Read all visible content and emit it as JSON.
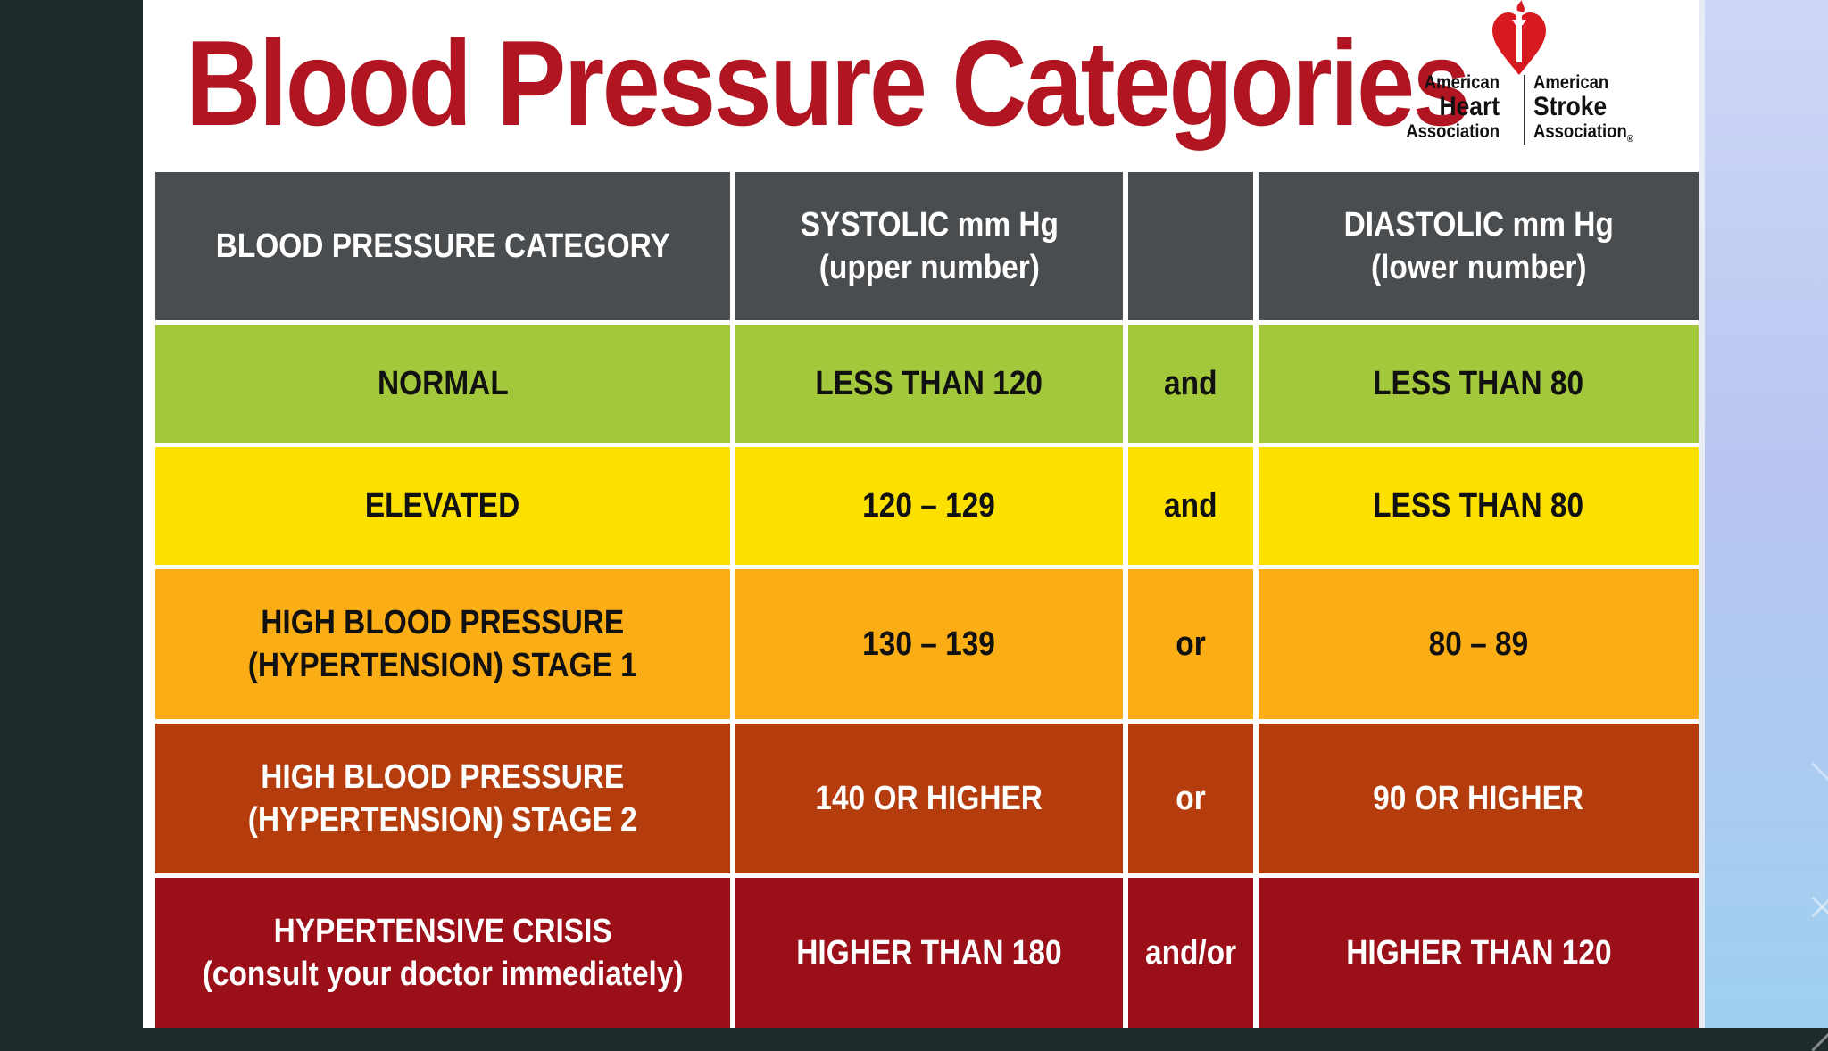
{
  "title": "Blood Pressure Categories",
  "logo": {
    "left_line1": "American",
    "left_line2": "Heart",
    "left_line3": "Association",
    "right_line1": "American",
    "right_line2": "Stroke",
    "right_line3": "Association",
    "registered": "®",
    "accent_color": "#d71920",
    "icon": "heart-torch-icon"
  },
  "colors": {
    "title": "#b01521",
    "header_bg": "#4a4d50",
    "normal_bg": "#a3c83c",
    "elevated_bg": "#fce100",
    "stage1_bg": "#fbad15",
    "stage2_bg": "#b53c0c",
    "crisis_bg": "#9a0f18"
  },
  "table": {
    "headers": {
      "category": "BLOOD PRESSURE CATEGORY",
      "systolic": "SYSTOLIC mm Hg\n(upper number)",
      "connector": "",
      "diastolic": "DIASTOLIC mm Hg\n(lower number)"
    },
    "rows": [
      {
        "category": "NORMAL",
        "systolic": "LESS THAN 120",
        "connector": "and",
        "diastolic": "LESS THAN 80"
      },
      {
        "category": "ELEVATED",
        "systolic": "120 – 129",
        "connector": "and",
        "diastolic": "LESS THAN 80"
      },
      {
        "category": "HIGH BLOOD PRESSURE\n(HYPERTENSION) STAGE 1",
        "systolic": "130 – 139",
        "connector": "or",
        "diastolic": "80 – 89"
      },
      {
        "category": "HIGH BLOOD PRESSURE\n(HYPERTENSION) STAGE 2",
        "systolic": "140 OR HIGHER",
        "connector": "or",
        "diastolic": "90 OR HIGHER"
      },
      {
        "category": "HYPERTENSIVE CRISIS\n(consult your doctor immediately)",
        "systolic": "HIGHER THAN 180",
        "connector": "and/or",
        "diastolic": "HIGHER THAN 120"
      }
    ]
  }
}
